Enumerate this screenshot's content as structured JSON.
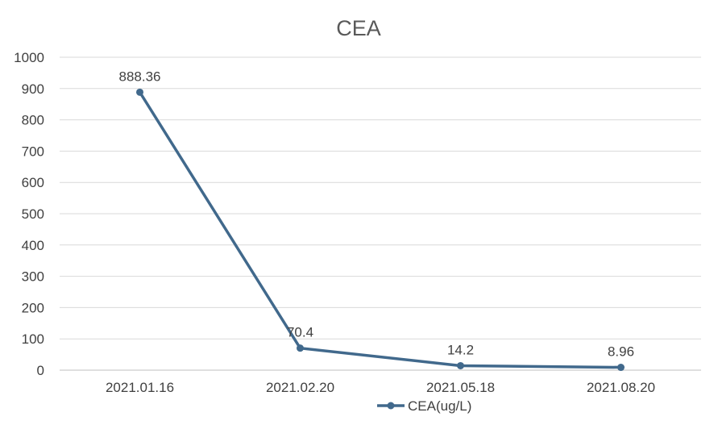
{
  "chart_data": {
    "type": "line",
    "title": "CEA",
    "categories": [
      "2021.01.16",
      "2021.02.20",
      "2021.05.18",
      "2021.08.20"
    ],
    "series": [
      {
        "name": "CEA(ug/L)",
        "values": [
          888.36,
          70.4,
          14.2,
          8.96
        ],
        "data_labels": [
          "888.36",
          "70.4",
          "14.2",
          "8.96"
        ],
        "color": "#41698c"
      }
    ],
    "ylim": [
      0,
      1000
    ],
    "yticks": [
      "0",
      "100",
      "200",
      "300",
      "400",
      "500",
      "600",
      "700",
      "800",
      "900",
      "1000"
    ],
    "grid": true,
    "legend_position": "bottom",
    "colors": {
      "text": "#404040",
      "title": "#595959",
      "grid": "#d9d9d9",
      "axis": "#bfbfbf"
    }
  }
}
